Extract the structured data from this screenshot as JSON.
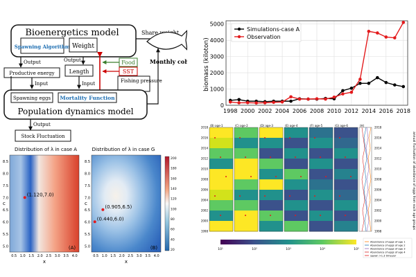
{
  "diagram": {
    "bioenergetics_title": "Bioenergetics model",
    "spawning_algorithm": "Spawning Algorithm",
    "weight": "Weight",
    "share_weight": "Share weight",
    "monthly_cohort": "Monthly cohort",
    "output1": "Output",
    "output2": "Output",
    "productive_energy": "Productive energy",
    "length": "Length",
    "input1": "Input",
    "input2": "Input",
    "food": "Food",
    "sst": "SST",
    "fishing_pressure": "Fishing pressure",
    "spawning_eggs": "Spawning eggs",
    "mortality_function": "Mortality Function",
    "population_title": "Population dynamics model",
    "output3": "Output",
    "stock_fluctuation": "Stock Fluctuation"
  },
  "colors": {
    "food_arrow": "#3a7d2c",
    "sst_arrow": "#cc0000",
    "blue_text": "#1f6fb2",
    "sim_line": "#000000",
    "obs_line": "#e31a1c"
  },
  "chart_data": [
    {
      "type": "line",
      "xlabel": "",
      "ylabel": "biomass (kiloton)",
      "x": [
        1998,
        1999,
        2000,
        2001,
        2002,
        2003,
        2004,
        2005,
        2006,
        2007,
        2008,
        2009,
        2010,
        2011,
        2012,
        2013,
        2014,
        2015,
        2016,
        2017,
        2018
      ],
      "xticks": [
        1998,
        2000,
        2002,
        2004,
        2006,
        2008,
        2010,
        2012,
        2014,
        2016,
        2018
      ],
      "yticks": [
        0,
        1000,
        2000,
        3000,
        4000,
        5000
      ],
      "ylim": [
        0,
        5200
      ],
      "xlim": [
        1997.5,
        2018.5
      ],
      "grid": true,
      "legend_position": "top-left",
      "series": [
        {
          "name": "Simulations-case A",
          "color": "#000000",
          "values": [
            300,
            350,
            250,
            250,
            220,
            250,
            250,
            250,
            400,
            380,
            380,
            420,
            400,
            900,
            1050,
            1350,
            1350,
            1700,
            1400,
            1250,
            1150
          ]
        },
        {
          "name": "Observation",
          "color": "#e31a1c",
          "values": [
            200,
            150,
            160,
            140,
            150,
            180,
            200,
            520,
            380,
            380,
            400,
            380,
            500,
            700,
            800,
            1600,
            4550,
            4450,
            4200,
            4150,
            5100
          ]
        }
      ]
    },
    {
      "type": "heatmap",
      "title": "Distribution of λ in case A",
      "xlabel": "x",
      "ylabel": "c",
      "xticks": [
        "0.5",
        "1.0",
        "1.5",
        "2.0",
        "2.5",
        "3.0",
        "3.5",
        "4.0"
      ],
      "yticks": [
        "5.0",
        "5.5",
        "6.0",
        "6.5",
        "7.0",
        "7.5",
        "8.0",
        "8.5"
      ],
      "annotations": [
        {
          "x": 1.12,
          "y": 7.0,
          "text": "(1.120,7.0)"
        }
      ],
      "panel_label": "(A)"
    },
    {
      "type": "heatmap",
      "title": "Distribution of λ in case G",
      "xlabel": "x",
      "ylabel": "c",
      "xticks": [
        "0.5",
        "1.0",
        "1.5",
        "2.0",
        "2.5",
        "3.0",
        "3.5",
        "4.0"
      ],
      "yticks": [
        "5.0",
        "5.5",
        "6.0",
        "6.5",
        "7.0",
        "7.5",
        "8.0",
        "8.5"
      ],
      "colorbar_ticks": [
        "200",
        "180",
        "160",
        "140",
        "120",
        "100",
        "80",
        "60",
        "40",
        "20"
      ],
      "annotations": [
        {
          "x": 0.905,
          "y": 6.5,
          "text": "(0.905,6.5)"
        },
        {
          "x": 0.44,
          "y": 6.0,
          "text": "(0.440,6.0)"
        }
      ],
      "panel_label": "(B)"
    },
    {
      "type": "heatmap",
      "panels": [
        "(B) age-1",
        "(C) age-2",
        "(D) age-3",
        "(E) age-4",
        "(F) age-5",
        "(G) age-6",
        "(H)"
      ],
      "yticks": [
        "2018",
        "2016",
        "2014",
        "2012",
        "2010",
        "2008",
        "2006",
        "2004",
        "2002",
        "2000",
        "1998"
      ],
      "colorbar_ticks": [
        "10¹",
        "10²",
        "10³",
        "10⁴",
        "10⁵"
      ],
      "ylabel_right": "annual fluctuation of abundance of eggs from each age groups",
      "legend": [
        "Abundance of eggs of age 1",
        "Abundance of eggs of age 2",
        "Abundance of eggs of age 3",
        "Abundance of eggs of age 4",
        "spawn >1.3 times/yr"
      ]
    }
  ]
}
